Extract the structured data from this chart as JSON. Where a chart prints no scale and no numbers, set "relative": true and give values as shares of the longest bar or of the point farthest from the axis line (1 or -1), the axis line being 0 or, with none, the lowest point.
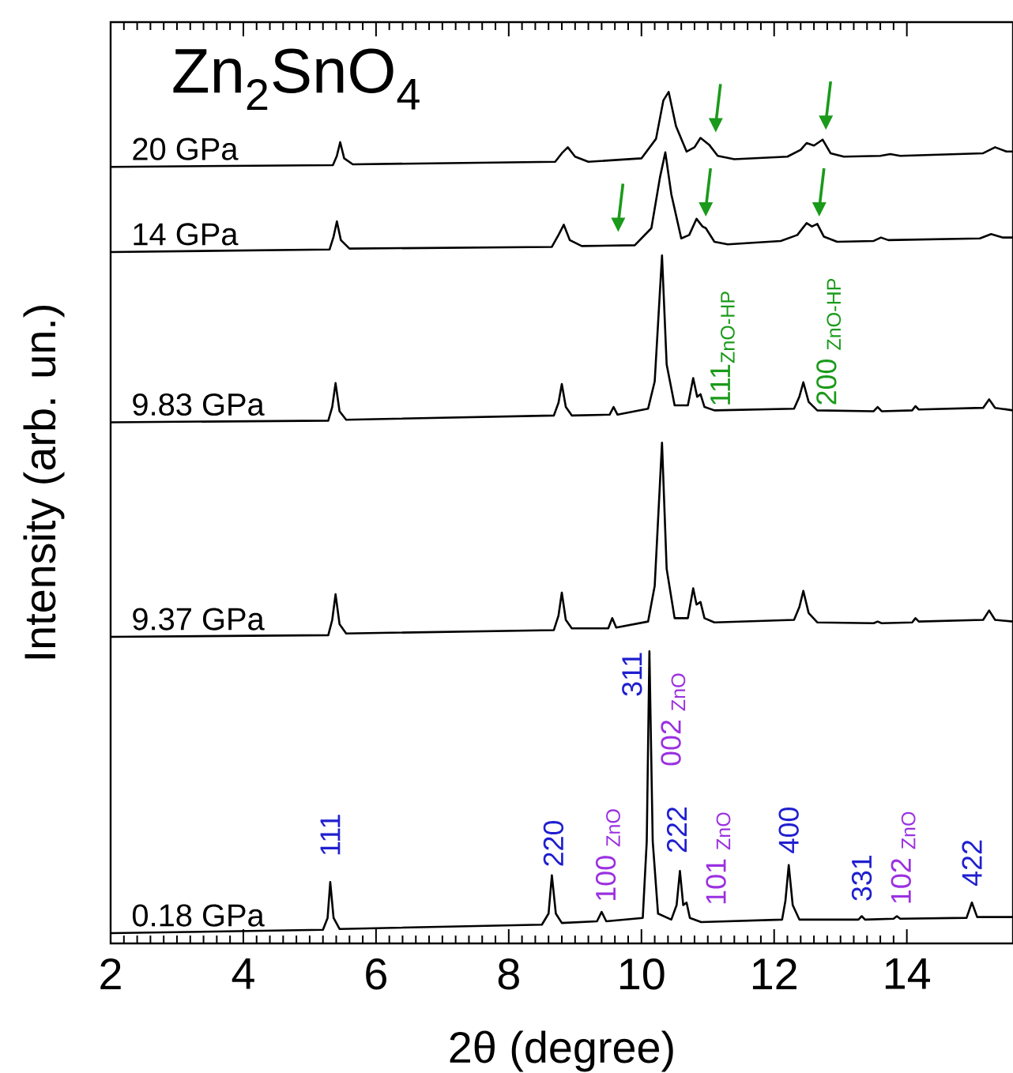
{
  "chart_data": {
    "type": "line",
    "title": "Zn$_{2}$SnO$_{4}$",
    "xlabel": "2θ (degree)",
    "ylabel": "Intensity (arb. un.)",
    "relative": true,
    "xlim": [
      2,
      15.6
    ],
    "xticks": [
      2,
      4,
      6,
      8,
      10,
      12,
      14
    ],
    "grid": false,
    "series": [
      {
        "name": "0.18 GPa",
        "color": "#000000",
        "x": [
          2,
          5.2,
          5.27,
          5.31,
          5.36,
          5.45,
          8.5,
          8.6,
          8.65,
          8.71,
          8.8,
          9.33,
          9.4,
          9.47,
          10.02,
          10.08,
          10.12,
          10.17,
          10.25,
          10.45,
          10.53,
          10.58,
          10.63,
          10.68,
          10.73,
          10.9,
          12.12,
          12.17,
          12.22,
          12.28,
          12.38,
          13.27,
          13.32,
          13.37,
          13.8,
          13.85,
          13.9,
          14.9,
          14.98,
          15.06,
          15.6
        ],
        "values": [
          0.012,
          0.016,
          0.03,
          0.072,
          0.03,
          0.017,
          0.022,
          0.035,
          0.08,
          0.035,
          0.024,
          0.026,
          0.037,
          0.026,
          0.03,
          0.12,
          0.343,
          0.12,
          0.035,
          0.028,
          0.045,
          0.085,
          0.045,
          0.048,
          0.03,
          0.025,
          0.028,
          0.05,
          0.092,
          0.045,
          0.028,
          0.028,
          0.032,
          0.028,
          0.029,
          0.032,
          0.029,
          0.03,
          0.048,
          0.031,
          0.031
        ]
      },
      {
        "name": "9.37 GPa",
        "color": "#000000",
        "x": [
          2,
          5.28,
          5.34,
          5.39,
          5.45,
          5.55,
          8.68,
          8.75,
          8.8,
          8.86,
          8.95,
          9.5,
          9.56,
          9.62,
          10.1,
          10.2,
          10.31,
          10.38,
          10.5,
          10.7,
          10.78,
          10.83,
          10.89,
          10.95,
          11.1,
          12.3,
          12.38,
          12.44,
          12.52,
          12.65,
          13.5,
          13.56,
          13.62,
          14.08,
          14.13,
          14.18,
          15.15,
          15.24,
          15.33,
          15.6
        ],
        "values": [
          0.36,
          0.362,
          0.38,
          0.41,
          0.375,
          0.364,
          0.368,
          0.385,
          0.412,
          0.38,
          0.37,
          0.37,
          0.382,
          0.371,
          0.378,
          0.42,
          0.588,
          0.44,
          0.382,
          0.382,
          0.417,
          0.398,
          0.401,
          0.382,
          0.377,
          0.38,
          0.395,
          0.414,
          0.388,
          0.377,
          0.376,
          0.378,
          0.376,
          0.377,
          0.382,
          0.378,
          0.38,
          0.391,
          0.38,
          0.378
        ]
      },
      {
        "name": "9.83 GPa",
        "color": "#000000",
        "x": [
          2,
          5.28,
          5.34,
          5.39,
          5.45,
          5.55,
          8.68,
          8.75,
          8.8,
          8.86,
          8.95,
          9.52,
          9.58,
          9.64,
          10.1,
          10.2,
          10.31,
          10.38,
          10.5,
          10.7,
          10.78,
          10.84,
          10.89,
          10.95,
          11.1,
          12.3,
          12.38,
          12.44,
          12.52,
          12.65,
          13.5,
          13.56,
          13.62,
          14.08,
          14.13,
          14.18,
          15.15,
          15.24,
          15.33,
          15.6
        ],
        "values": [
          0.612,
          0.614,
          0.63,
          0.658,
          0.625,
          0.615,
          0.62,
          0.635,
          0.657,
          0.63,
          0.62,
          0.621,
          0.63,
          0.621,
          0.628,
          0.66,
          0.808,
          0.68,
          0.632,
          0.632,
          0.664,
          0.642,
          0.645,
          0.63,
          0.626,
          0.628,
          0.642,
          0.659,
          0.636,
          0.626,
          0.625,
          0.63,
          0.625,
          0.626,
          0.631,
          0.627,
          0.629,
          0.639,
          0.629,
          0.626
        ]
      },
      {
        "name": "14 GPa",
        "color": "#000000",
        "x": [
          2,
          5.3,
          5.36,
          5.41,
          5.47,
          5.6,
          8.65,
          8.75,
          8.83,
          8.92,
          9.1,
          9.9,
          10.15,
          10.28,
          10.36,
          10.45,
          10.6,
          10.72,
          10.83,
          10.92,
          10.97,
          11.1,
          11.3,
          12.1,
          12.35,
          12.49,
          12.57,
          12.65,
          12.75,
          12.95,
          13.5,
          13.61,
          13.72,
          15.1,
          15.27,
          15.45,
          15.6
        ],
        "values": [
          0.812,
          0.815,
          0.83,
          0.848,
          0.826,
          0.816,
          0.818,
          0.832,
          0.844,
          0.826,
          0.819,
          0.82,
          0.84,
          0.9,
          0.929,
          0.88,
          0.828,
          0.832,
          0.851,
          0.842,
          0.84,
          0.824,
          0.821,
          0.825,
          0.832,
          0.846,
          0.842,
          0.845,
          0.83,
          0.824,
          0.825,
          0.829,
          0.826,
          0.828,
          0.833,
          0.829,
          0.829
        ]
      },
      {
        "name": "20 GPa",
        "color": "#000000",
        "x": [
          2,
          5.35,
          5.41,
          5.46,
          5.52,
          5.65,
          8.7,
          8.8,
          8.89,
          9.0,
          9.2,
          10.0,
          10.22,
          10.33,
          10.41,
          10.52,
          10.68,
          10.8,
          10.89,
          11.02,
          11.15,
          11.4,
          12.2,
          12.4,
          12.49,
          12.6,
          12.73,
          12.85,
          13.05,
          13.6,
          13.75,
          13.9,
          15.15,
          15.33,
          15.5,
          15.6
        ],
        "values": [
          0.912,
          0.914,
          0.925,
          0.941,
          0.922,
          0.915,
          0.918,
          0.928,
          0.935,
          0.924,
          0.918,
          0.922,
          0.945,
          0.99,
          1.0,
          0.96,
          0.93,
          0.935,
          0.946,
          0.938,
          0.925,
          0.921,
          0.924,
          0.932,
          0.94,
          0.937,
          0.944,
          0.928,
          0.924,
          0.925,
          0.927,
          0.925,
          0.928,
          0.935,
          0.93,
          0.93
        ]
      },
      {
        "type": "scatter",
        "color": "#1a9a1a",
        "x": [
          9.65,
          10.97,
          12.68,
          11.12,
          12.78
        ],
        "values": [
          0.844,
          0.862,
          0.862,
          0.961,
          0.964
        ]
      }
    ],
    "annotations": [
      {
        "text": "111",
        "x": 5.31,
        "y": 0.072
      },
      {
        "text": "220",
        "x": 8.65,
        "y": 0.08
      },
      {
        "text": "100 $_{ZnO}$",
        "x": 9.4,
        "y": 0.037
      },
      {
        "text": "311",
        "x": 10.12,
        "y": 0.343
      },
      {
        "text": "002 $_{ZnO}$",
        "x": 10.12,
        "y": 0.343
      },
      {
        "text": "222",
        "x": 10.58,
        "y": 0.085
      },
      {
        "text": "101 $_{ZnO}$",
        "x": 10.68,
        "y": 0.048
      },
      {
        "text": "400",
        "x": 12.22,
        "y": 0.092
      },
      {
        "text": "331",
        "x": 13.32,
        "y": 0.032
      },
      {
        "text": "102 $_{ZnO}$",
        "x": 13.85,
        "y": 0.032
      },
      {
        "text": "422",
        "x": 14.98,
        "y": 0.048
      },
      {
        "text": "111$_{ZnO-HP}$",
        "x": 10.89,
        "y": 0.645
      },
      {
        "text": "200 $_{ZnO-HP}$",
        "x": 12.44,
        "y": 0.659
      }
    ]
  }
}
